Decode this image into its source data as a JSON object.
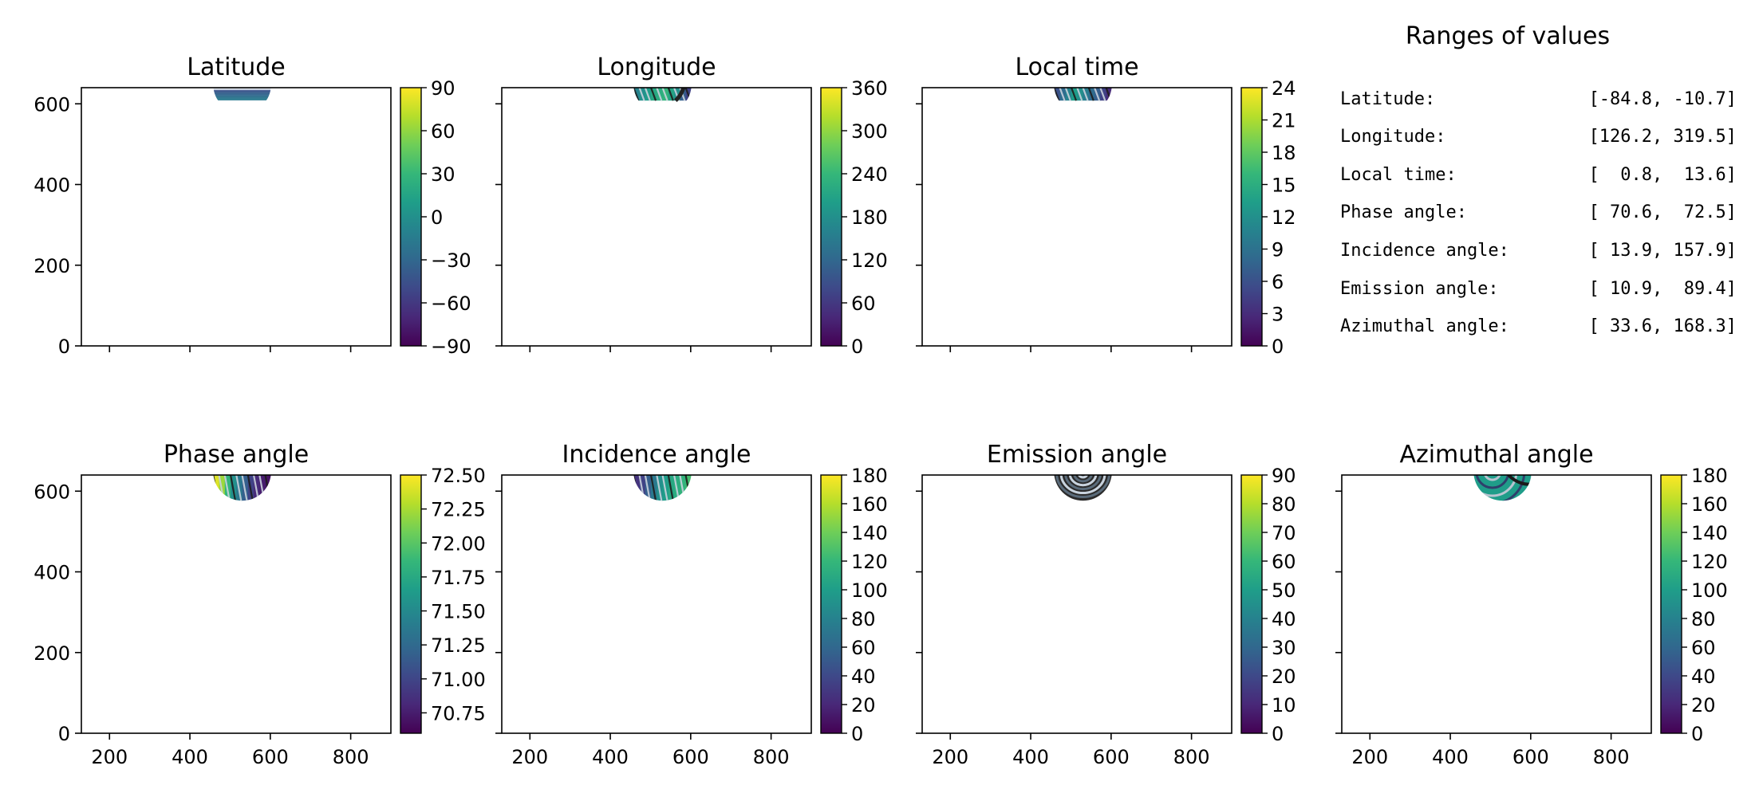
{
  "chart_data": [
    {
      "type": "heatmap",
      "title": "Latitude",
      "colormap": "viridis",
      "xlim": [
        130,
        900
      ],
      "ylim": [
        0,
        640
      ],
      "yticks": [
        0,
        200,
        400,
        600
      ],
      "xticks": [
        200,
        400,
        600,
        800
      ],
      "show_ytick_labels": true,
      "show_xtick_labels": false,
      "contour_style": "latitude-lines",
      "colorbar": {
        "range": [
          -90,
          90
        ],
        "ticks": [
          90,
          60,
          30,
          0,
          -30,
          -60,
          -90
        ],
        "tick_labels": [
          "90",
          "60",
          "30",
          "0",
          "−30",
          "−60",
          "−90"
        ]
      },
      "disk": {
        "cx": 530,
        "cy": 648,
        "r": 72,
        "visible_y": [
          608,
          640
        ],
        "mode": "latitude"
      }
    },
    {
      "type": "heatmap",
      "title": "Longitude",
      "colormap": "viridis",
      "xlim": [
        130,
        900
      ],
      "ylim": [
        0,
        640
      ],
      "yticks": [
        0,
        200,
        400,
        600
      ],
      "xticks": [
        200,
        400,
        600,
        800
      ],
      "show_ytick_labels": false,
      "show_xtick_labels": false,
      "contour_style": "meridians",
      "colorbar": {
        "range": [
          0,
          360
        ],
        "ticks": [
          360,
          300,
          240,
          180,
          120,
          60,
          0
        ],
        "tick_labels": [
          "360",
          "300",
          "240",
          "180",
          "120",
          "60",
          "0"
        ]
      },
      "disk": {
        "cx": 530,
        "cy": 648,
        "r": 72,
        "visible_y": [
          608,
          640
        ],
        "mode": "longitude"
      }
    },
    {
      "type": "heatmap",
      "title": "Local time",
      "colormap": "viridis",
      "xlim": [
        130,
        900
      ],
      "ylim": [
        0,
        640
      ],
      "yticks": [
        0,
        200,
        400,
        600
      ],
      "xticks": [
        200,
        400,
        600,
        800
      ],
      "show_ytick_labels": false,
      "show_xtick_labels": false,
      "contour_style": "meridians",
      "colorbar": {
        "range": [
          0,
          24
        ],
        "ticks": [
          24,
          21,
          18,
          15,
          12,
          9,
          6,
          3,
          0
        ],
        "tick_labels": [
          "24",
          "21",
          "18",
          "15",
          "12",
          "9",
          "6",
          "3",
          "0"
        ]
      },
      "disk": {
        "cx": 530,
        "cy": 648,
        "r": 72,
        "visible_y": [
          608,
          640
        ],
        "mode": "localtime"
      }
    },
    {
      "type": "heatmap",
      "title": "Phase angle",
      "colormap": "viridis",
      "xlim": [
        130,
        900
      ],
      "ylim": [
        0,
        640
      ],
      "yticks": [
        0,
        200,
        400,
        600
      ],
      "xticks": [
        200,
        400,
        600,
        800
      ],
      "show_ytick_labels": true,
      "show_xtick_labels": true,
      "contour_style": "meridians",
      "colorbar": {
        "range": [
          70.6,
          72.5
        ],
        "ticks": [
          72.5,
          72.25,
          72.0,
          71.75,
          71.5,
          71.25,
          71.0,
          70.75
        ],
        "tick_labels": [
          "72.50",
          "72.25",
          "72.00",
          "71.75",
          "71.50",
          "71.25",
          "71.00",
          "70.75"
        ]
      },
      "disk": {
        "cx": 530,
        "cy": 648,
        "r": 72,
        "visible_y": [
          576,
          640
        ],
        "mode": "phase"
      }
    },
    {
      "type": "heatmap",
      "title": "Incidence angle",
      "colormap": "viridis",
      "xlim": [
        130,
        900
      ],
      "ylim": [
        0,
        640
      ],
      "yticks": [
        0,
        200,
        400,
        600
      ],
      "xticks": [
        200,
        400,
        600,
        800
      ],
      "show_ytick_labels": false,
      "show_xtick_labels": true,
      "contour_style": "meridians",
      "colorbar": {
        "range": [
          0,
          180
        ],
        "ticks": [
          180,
          160,
          140,
          120,
          100,
          80,
          60,
          40,
          20,
          0
        ],
        "tick_labels": [
          "180",
          "160",
          "140",
          "120",
          "100",
          "80",
          "60",
          "40",
          "20",
          "0"
        ]
      },
      "disk": {
        "cx": 530,
        "cy": 648,
        "r": 72,
        "visible_y": [
          576,
          640
        ],
        "mode": "incidence"
      }
    },
    {
      "type": "heatmap",
      "title": "Emission angle",
      "colormap": "viridis",
      "xlim": [
        130,
        900
      ],
      "ylim": [
        0,
        640
      ],
      "yticks": [
        0,
        200,
        400,
        600
      ],
      "xticks": [
        200,
        400,
        600,
        800
      ],
      "show_ytick_labels": false,
      "show_xtick_labels": true,
      "contour_style": "rings",
      "colorbar": {
        "range": [
          0,
          90
        ],
        "ticks": [
          90,
          80,
          70,
          60,
          50,
          40,
          30,
          20,
          10,
          0
        ],
        "tick_labels": [
          "90",
          "80",
          "70",
          "60",
          "50",
          "40",
          "30",
          "20",
          "10",
          "0"
        ]
      },
      "disk": {
        "cx": 530,
        "cy": 648,
        "r": 72,
        "visible_y": [
          576,
          640
        ],
        "mode": "emission"
      }
    },
    {
      "type": "heatmap",
      "title": "Azimuthal angle",
      "colormap": "viridis",
      "xlim": [
        130,
        900
      ],
      "ylim": [
        0,
        640
      ],
      "yticks": [
        0,
        200,
        400,
        600
      ],
      "xticks": [
        200,
        400,
        600,
        800
      ],
      "show_ytick_labels": false,
      "show_xtick_labels": true,
      "contour_style": "arcs",
      "colorbar": {
        "range": [
          0,
          180
        ],
        "ticks": [
          180,
          160,
          140,
          120,
          100,
          80,
          60,
          40,
          20,
          0
        ],
        "tick_labels": [
          "180",
          "160",
          "140",
          "120",
          "100",
          "80",
          "60",
          "40",
          "20",
          "0"
        ]
      },
      "disk": {
        "cx": 530,
        "cy": 648,
        "r": 72,
        "visible_y": [
          576,
          640
        ],
        "mode": "azimuth"
      }
    }
  ],
  "ranges_panel": {
    "title": "Ranges of values",
    "rows": [
      {
        "label": "Latitude:",
        "value": "[-84.8, -10.7]"
      },
      {
        "label": "Longitude:",
        "value": "[126.2, 319.5]"
      },
      {
        "label": "Local time:",
        "value": "[  0.8,  13.6]"
      },
      {
        "label": "Phase angle:",
        "value": "[ 70.6,  72.5]"
      },
      {
        "label": "Incidence angle:",
        "value": "[ 13.9, 157.9]"
      },
      {
        "label": "Emission angle:",
        "value": "[ 10.9,  89.4]"
      },
      {
        "label": "Azimuthal angle:",
        "value": "[ 33.6, 168.3]"
      }
    ]
  }
}
